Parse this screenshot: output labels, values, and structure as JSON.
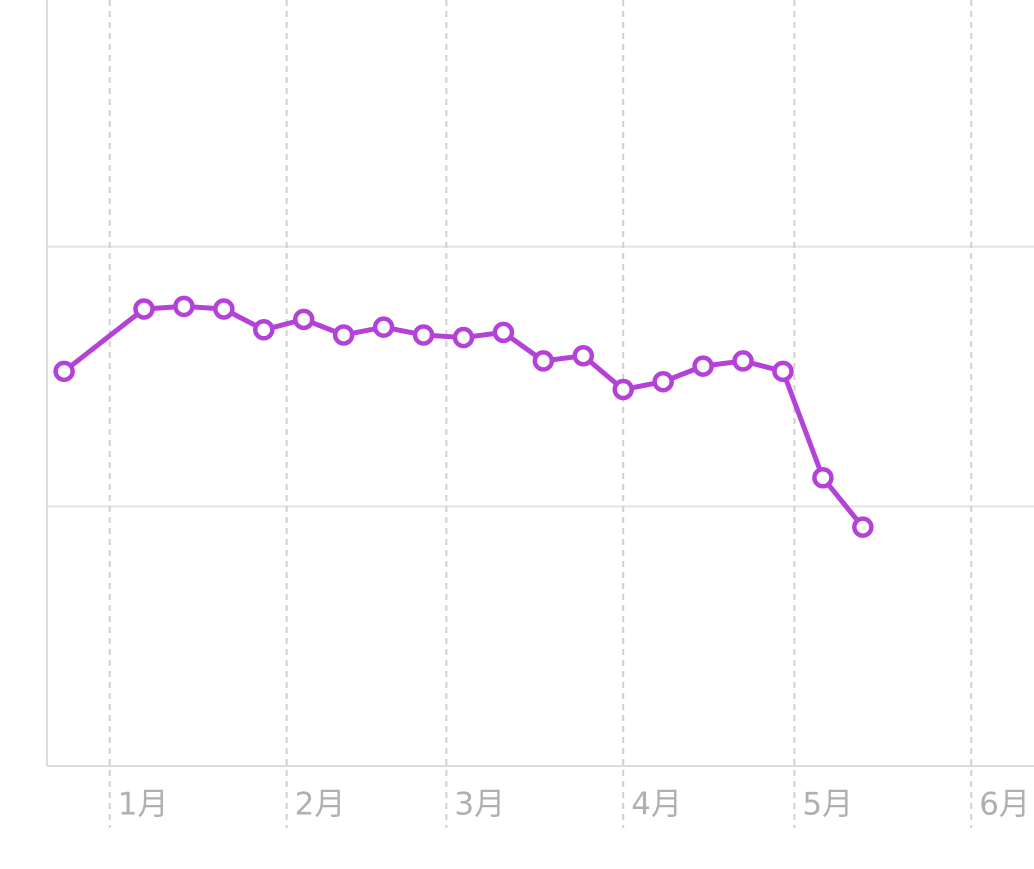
{
  "chart_data": {
    "type": "line",
    "x": [
      -8,
      6,
      13,
      20,
      27,
      34,
      41,
      48,
      55,
      62,
      69,
      76,
      83,
      90,
      97,
      104,
      111,
      118,
      125,
      132
    ],
    "series": [
      {
        "color": "#b441d8",
        "values": [
          1.52,
          1.76,
          1.77,
          1.76,
          1.68,
          1.72,
          1.66,
          1.69,
          1.66,
          1.65,
          1.67,
          1.56,
          1.58,
          1.45,
          1.48,
          1.54,
          1.56,
          1.52,
          1.11,
          0.92
        ]
      }
    ],
    "xlim": [
      -11,
      162
    ],
    "xticks": [
      {
        "value": 0,
        "label": "1月"
      },
      {
        "value": 31,
        "label": "2月"
      },
      {
        "value": 59,
        "label": "3月"
      },
      {
        "value": 90,
        "label": "4月"
      },
      {
        "value": 120,
        "label": "5月"
      },
      {
        "value": 151,
        "label": "6月"
      }
    ],
    "ylim": [
      0,
      2.95
    ],
    "yticks": [
      0,
      1,
      2
    ],
    "grid": true
  }
}
